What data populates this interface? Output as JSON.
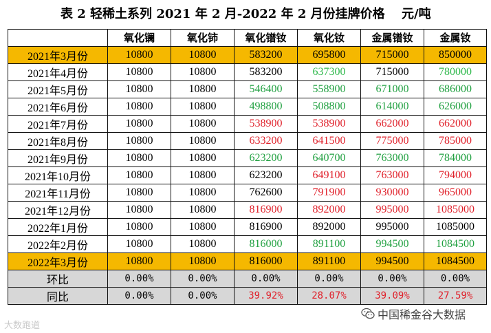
{
  "title": "表 2  轻稀土系列 2021 年 2 月-2022 年 2 月份挂牌价格",
  "unit": "元/吨",
  "headers": [
    "",
    "氧化镧",
    "氧化铈",
    "氧化镨钕",
    "氧化钕",
    "金属镨钕",
    "金属钕"
  ],
  "rows": [
    {
      "label": "2021年3月份",
      "values": [
        "10800",
        "10800",
        "583200",
        "695800",
        "715000",
        "850000"
      ],
      "colors": [
        "black",
        "black",
        "black",
        "black",
        "black",
        "black"
      ]
    },
    {
      "label": "2021年4月份",
      "values": [
        "10800",
        "10800",
        "583200",
        "637300",
        "715000",
        "780000"
      ],
      "colors": [
        "black",
        "black",
        "black",
        "lgreen",
        "black",
        "lgreen"
      ]
    },
    {
      "label": "2021年5月份",
      "values": [
        "10800",
        "10800",
        "546400",
        "558900",
        "671000",
        "686000"
      ],
      "colors": [
        "black",
        "black",
        "green",
        "green",
        "green",
        "green"
      ]
    },
    {
      "label": "2021年6月份",
      "values": [
        "10800",
        "10800",
        "498800",
        "508800",
        "614000",
        "626000"
      ],
      "colors": [
        "black",
        "black",
        "green",
        "green",
        "green",
        "green"
      ]
    },
    {
      "label": "2021年7月份",
      "values": [
        "10800",
        "10800",
        "538900",
        "538900",
        "662000",
        "662000"
      ],
      "colors": [
        "black",
        "black",
        "red",
        "red",
        "red",
        "red"
      ]
    },
    {
      "label": "2021年8月份",
      "values": [
        "10800",
        "10800",
        "633200",
        "641500",
        "775000",
        "785000"
      ],
      "colors": [
        "black",
        "black",
        "red",
        "red",
        "red",
        "red"
      ]
    },
    {
      "label": "2021年9月份",
      "values": [
        "10800",
        "10800",
        "623200",
        "640700",
        "763000",
        "784000"
      ],
      "colors": [
        "black",
        "black",
        "green",
        "green",
        "green",
        "green"
      ]
    },
    {
      "label": "2021年10月份",
      "values": [
        "10800",
        "10800",
        "623200",
        "649100",
        "763000",
        "794000"
      ],
      "colors": [
        "black",
        "black",
        "black",
        "red",
        "red",
        "red"
      ]
    },
    {
      "label": "2021年11月份",
      "values": [
        "10800",
        "10800",
        "762600",
        "791900",
        "930000",
        "965000"
      ],
      "colors": [
        "black",
        "black",
        "black",
        "red",
        "red",
        "red"
      ]
    },
    {
      "label": "2021年12月份",
      "values": [
        "10800",
        "10800",
        "816900",
        "892000",
        "995000",
        "1085000"
      ],
      "colors": [
        "black",
        "black",
        "red",
        "red",
        "red",
        "red"
      ]
    },
    {
      "label": "2022年1月份",
      "values": [
        "10800",
        "10800",
        "816900",
        "892000",
        "995000",
        "1085000"
      ],
      "colors": [
        "black",
        "black",
        "black",
        "black",
        "black",
        "black"
      ]
    },
    {
      "label": "2022年2月份",
      "values": [
        "10800",
        "10800",
        "816000",
        "891100",
        "994500",
        "1084500"
      ],
      "colors": [
        "black",
        "black",
        "green",
        "green",
        "green",
        "green"
      ]
    },
    {
      "label": "2022年3月份",
      "values": [
        "10800",
        "10800",
        "816000",
        "891100",
        "994500",
        "1084500"
      ],
      "colors": [
        "black",
        "black",
        "black",
        "black",
        "black",
        "black"
      ]
    }
  ],
  "summary": [
    {
      "label": "环比",
      "values": [
        "0.00%",
        "0.00%",
        "0.00%",
        "0.00%",
        "0.00%",
        "0.00%"
      ],
      "colors": [
        "black",
        "black",
        "black",
        "black",
        "black",
        "black"
      ]
    },
    {
      "label": "同比",
      "values": [
        "0.00%",
        "0.00%",
        "39.92%",
        "28.07%",
        "39.09%",
        "27.59%"
      ],
      "colors": [
        "black",
        "black",
        "red",
        "red",
        "red",
        "red"
      ]
    }
  ],
  "highlight_rows": [
    0,
    12
  ],
  "highlight_color": "#f5b800",
  "summary_bg": "#d7d7d7",
  "watermark_left": "大数跑道",
  "watermark_right": "中国稀金谷大数据",
  "watermark_right_icon": "wechat-icon"
}
